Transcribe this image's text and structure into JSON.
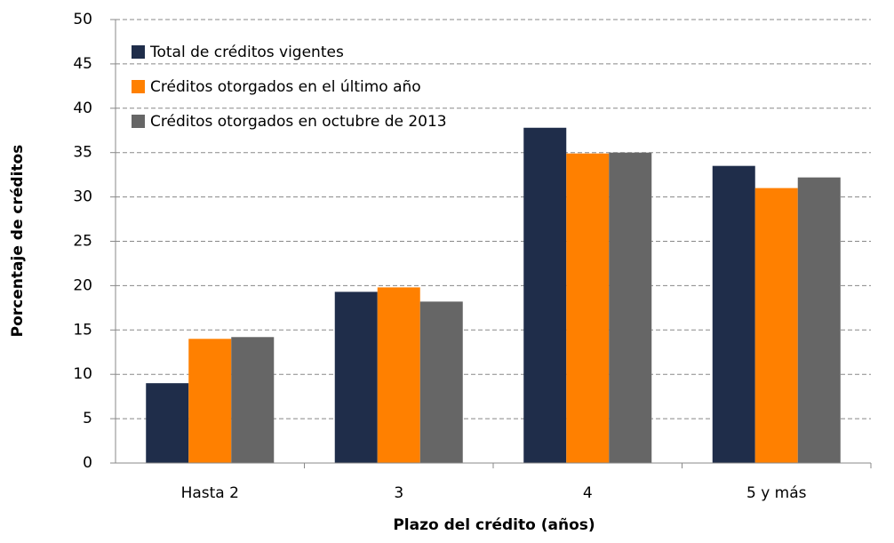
{
  "chart_data": {
    "type": "bar",
    "x_label": "Plazo del crédito (años)",
    "y_label": "Porcentaje de créditos",
    "categories": [
      "Hasta 2",
      "3",
      "4",
      "5 y más"
    ],
    "series": [
      {
        "name": "Total de créditos vigentes",
        "color": "#1f2d4a",
        "values": [
          9.0,
          19.3,
          37.8,
          33.5
        ]
      },
      {
        "name": "Créditos otorgados en el último año",
        "color": "#ff8000",
        "values": [
          14.0,
          19.8,
          34.9,
          31.0
        ]
      },
      {
        "name": "Créditos otorgados en octubre de 2013",
        "color": "#666666",
        "values": [
          14.2,
          18.2,
          35.0,
          32.2
        ]
      }
    ],
    "ylim": [
      0,
      50
    ],
    "yticks": [
      0,
      5,
      10,
      15,
      20,
      25,
      30,
      35,
      40,
      45,
      50
    ],
    "grid": true,
    "legend": "top-left"
  }
}
